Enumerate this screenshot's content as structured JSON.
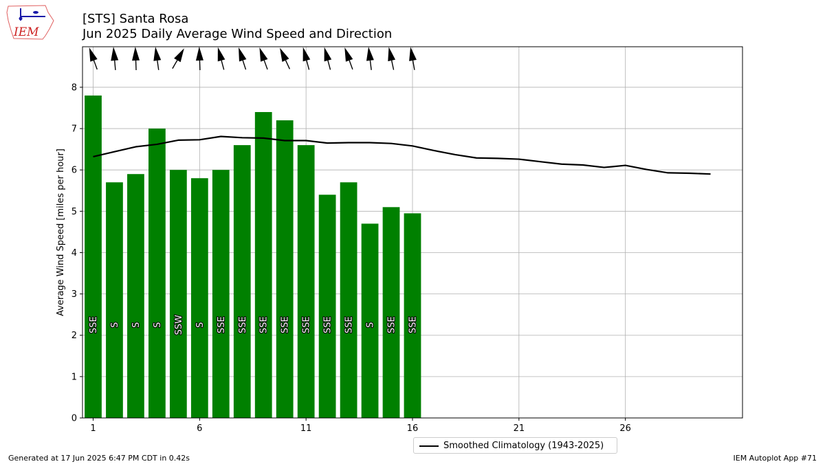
{
  "logo": {
    "text": "IEM",
    "icon": "iem-iowa-logo"
  },
  "header": {
    "title_line1": "[STS] Santa Rosa",
    "title_line2": "Jun 2025 Daily Average Wind Speed and Direction"
  },
  "footer": {
    "left": "Generated at 17 Jun 2025 6:47 PM CDT in 0.42s",
    "right": "IEM Autoplot App #71"
  },
  "colors": {
    "bars": "#008000",
    "climatology": "#000000",
    "grid": "#b0b0b0",
    "arrows": "#000000"
  },
  "chart_data": {
    "type": "bar",
    "ylabel": "Average Wind Speed [miles per hour]",
    "xlim": [
      0.5,
      31.5
    ],
    "ylim": [
      0,
      8.98
    ],
    "xticks": [
      1,
      6,
      11,
      16,
      21,
      26
    ],
    "yticks": [
      0,
      1,
      2,
      3,
      4,
      5,
      6,
      7,
      8
    ],
    "grid": true,
    "legend_position": "below-center",
    "series": [
      {
        "type": "bar",
        "days": [
          1,
          2,
          3,
          4,
          5,
          6,
          7,
          8,
          9,
          10,
          11,
          12,
          13,
          14,
          15,
          16
        ],
        "values": [
          7.8,
          5.7,
          5.9,
          7.0,
          6.0,
          5.8,
          6.0,
          6.6,
          7.4,
          7.2,
          6.6,
          5.4,
          5.7,
          4.7,
          5.1,
          4.95
        ],
        "direction_labels": [
          "SSE",
          "S",
          "S",
          "S",
          "SSW",
          "S",
          "SSE",
          "SSE",
          "SSE",
          "SSE",
          "SSE",
          "SSE",
          "SSE",
          "S",
          "SSE",
          "SSE"
        ],
        "direction_degrees": [
          160,
          175,
          178,
          172,
          210,
          178,
          165,
          162,
          160,
          155,
          165,
          165,
          160,
          173,
          168,
          170
        ]
      },
      {
        "type": "line",
        "name": "Smoothed Climatology (1943-2025)",
        "x": [
          1,
          2,
          3,
          4,
          5,
          6,
          7,
          8,
          9,
          10,
          11,
          12,
          13,
          14,
          15,
          16,
          17,
          18,
          19,
          20,
          21,
          22,
          23,
          24,
          25,
          26,
          27,
          28,
          29,
          30
        ],
        "values": [
          6.32,
          6.44,
          6.56,
          6.62,
          6.72,
          6.73,
          6.81,
          6.78,
          6.77,
          6.71,
          6.71,
          6.65,
          6.66,
          6.66,
          6.64,
          6.58,
          6.47,
          6.37,
          6.29,
          6.28,
          6.26,
          6.2,
          6.14,
          6.12,
          6.06,
          6.11,
          6.01,
          5.93,
          5.92,
          5.9
        ]
      }
    ]
  }
}
